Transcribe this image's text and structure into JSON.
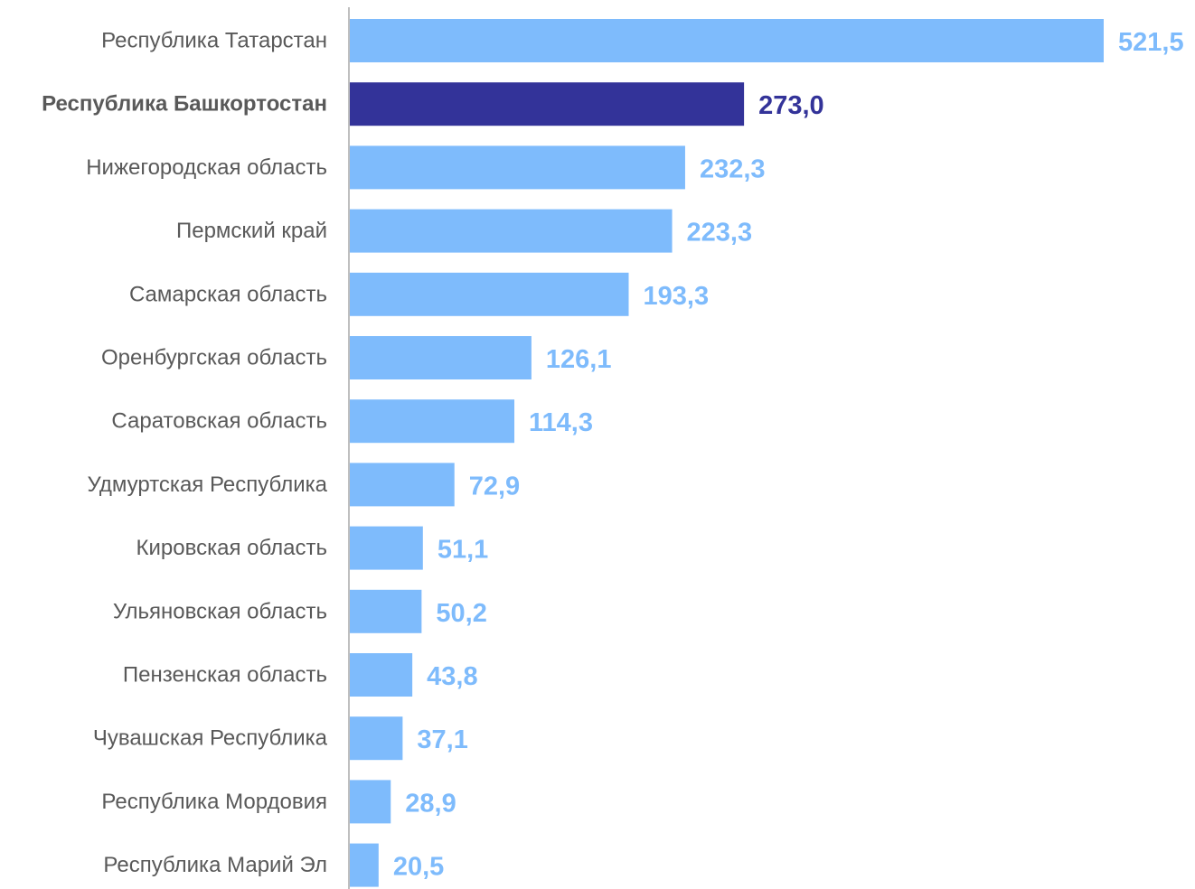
{
  "chart_data": {
    "type": "bar",
    "orientation": "horizontal",
    "categories": [
      "Республика Татарстан",
      "Республика Башкортостан",
      "Нижегородская область",
      "Пермский край",
      "Самарская область",
      "Оренбургская область",
      "Саратовская область",
      "Удмуртская Республика",
      "Кировская область",
      "Ульяновская область",
      "Пензенская область",
      "Чувашская Республика",
      "Республика Мордовия",
      "Республика Марий Эл"
    ],
    "values": [
      521.5,
      273.0,
      232.3,
      223.3,
      193.3,
      126.1,
      114.3,
      72.9,
      51.1,
      50.2,
      43.8,
      37.1,
      28.9,
      20.5
    ],
    "value_labels": [
      "521,5",
      "273,0",
      "232,3",
      "223,3",
      "193,3",
      "126,1",
      "114,3",
      "72,9",
      "51,1",
      "50,2",
      "43,8",
      "37,1",
      "28,9",
      "20,5"
    ],
    "highlight_index": 1,
    "xlim": [
      0,
      521.5
    ],
    "grid": false,
    "legend": "none"
  },
  "colors": {
    "bar": "#7EBBFC",
    "bar_highlight": "#333399",
    "label_text": "#595959",
    "axis_line": "#BFBFBF"
  }
}
